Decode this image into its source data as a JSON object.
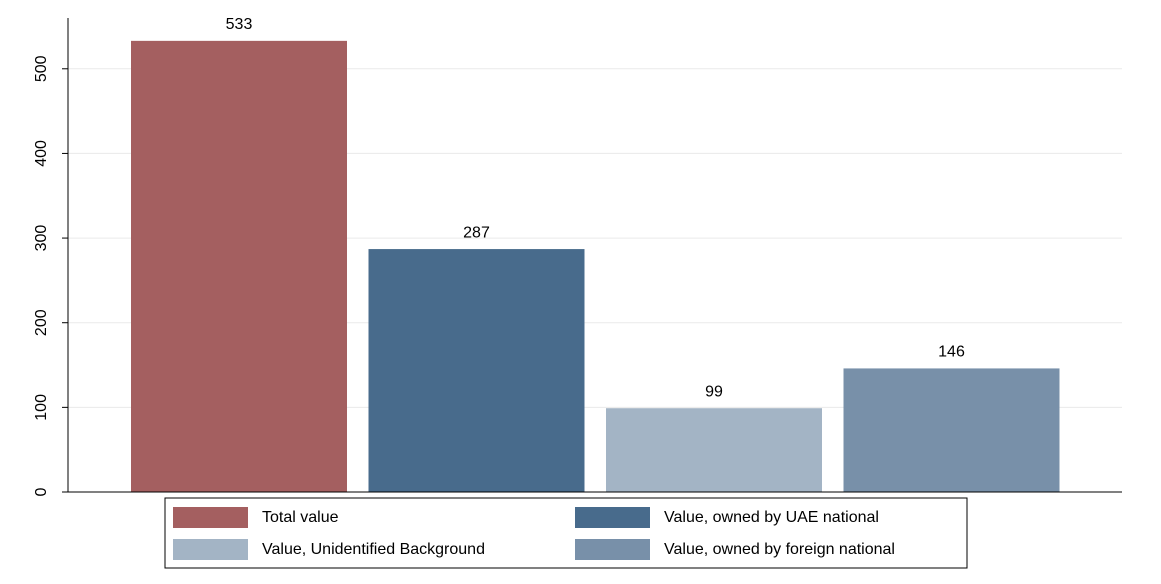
{
  "chart_data": {
    "type": "bar",
    "series": [
      {
        "name": "Total value",
        "color": "#a45f60",
        "values": [
          533
        ]
      },
      {
        "name": "Value, owned by UAE national",
        "color": "#486b8c",
        "values": [
          287
        ]
      },
      {
        "name": "Value, Unidentified Background",
        "color": "#a3b4c5",
        "values": [
          99
        ]
      },
      {
        "name": "Value, owned by foreign national",
        "color": "#7890a9",
        "values": [
          146
        ]
      }
    ],
    "ylim": [
      0,
      560
    ],
    "yticks": [
      0,
      100,
      200,
      300,
      400,
      500
    ],
    "grid": true,
    "legend": "bottom"
  }
}
